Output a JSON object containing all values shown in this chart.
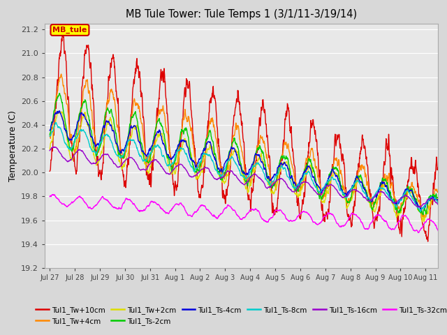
{
  "title": "MB Tule Tower: Tule Temps 1 (3/1/11-3/19/14)",
  "ylabel": "Temperature (C)",
  "ylim": [
    19.2,
    21.25
  ],
  "yticks": [
    19.2,
    19.4,
    19.6,
    19.8,
    20.0,
    20.2,
    20.4,
    20.6,
    20.8,
    21.0,
    21.2
  ],
  "background_color": "#d8d8d8",
  "plot_bg_color": "#e8e8e8",
  "grid_color": "#ffffff",
  "series": [
    {
      "name": "Tul1_Tw+10cm",
      "color": "#dd0000",
      "lw": 1.0
    },
    {
      "name": "Tul1_Tw+4cm",
      "color": "#ff8800",
      "lw": 1.0
    },
    {
      "name": "Tul1_Tw+2cm",
      "color": "#dddd00",
      "lw": 1.0
    },
    {
      "name": "Tul1_Ts-2cm",
      "color": "#00cc00",
      "lw": 1.0
    },
    {
      "name": "Tul1_Ts-4cm",
      "color": "#0000dd",
      "lw": 1.0
    },
    {
      "name": "Tul1_Ts-8cm",
      "color": "#00cccc",
      "lw": 1.0
    },
    {
      "name": "Tul1_Ts-16cm",
      "color": "#9900cc",
      "lw": 1.0
    },
    {
      "name": "Tul1_Ts-32cm",
      "color": "#ff00ff",
      "lw": 1.0
    }
  ],
  "tick_labels": [
    "Jul 27",
    "Jul 28",
    "Jul 29",
    "Jul 30",
    "Jul 31",
    "Aug 1",
    "Aug 2",
    "Aug 3",
    "Aug 4",
    "Aug 5",
    "Aug 6",
    "Aug 7",
    "Aug 8",
    "Aug 9",
    "Aug 10",
    "Aug 11"
  ]
}
